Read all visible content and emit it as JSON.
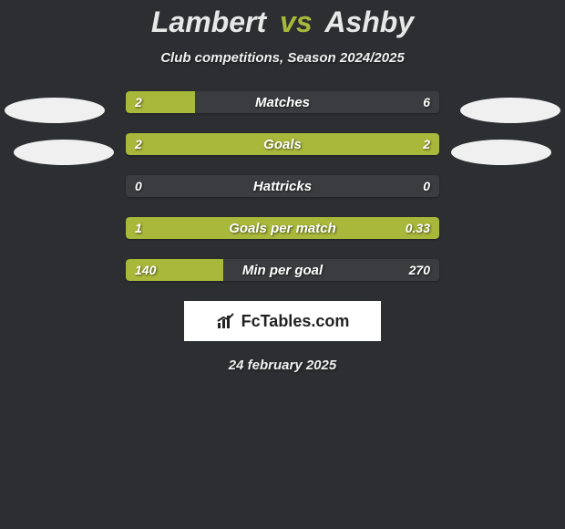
{
  "title": {
    "player1": "Lambert",
    "vs": "vs",
    "player2": "Ashby"
  },
  "subtitle": "Club competitions, Season 2024/2025",
  "colors": {
    "background": "#2c2e31",
    "bar_fill": "#a8b83a",
    "bar_track": "#3a3c3f",
    "text": "#ffffff",
    "ellipse": "#f0f0f0",
    "logo_bg": "#ffffff",
    "logo_text": "#222222"
  },
  "stats": [
    {
      "label": "Matches",
      "left_val": "2",
      "right_val": "6",
      "left_pct": 22,
      "right_pct": 0
    },
    {
      "label": "Goals",
      "left_val": "2",
      "right_val": "2",
      "left_pct": 50,
      "right_pct": 50
    },
    {
      "label": "Hattricks",
      "left_val": "0",
      "right_val": "0",
      "left_pct": 0,
      "right_pct": 0
    },
    {
      "label": "Goals per match",
      "left_val": "1",
      "right_val": "0.33",
      "left_pct": 75,
      "right_pct": 25
    },
    {
      "label": "Min per goal",
      "left_val": "140",
      "right_val": "270",
      "left_pct": 31,
      "right_pct": 0
    }
  ],
  "logo": {
    "text": "FcTables.com"
  },
  "date": "24 february 2025"
}
